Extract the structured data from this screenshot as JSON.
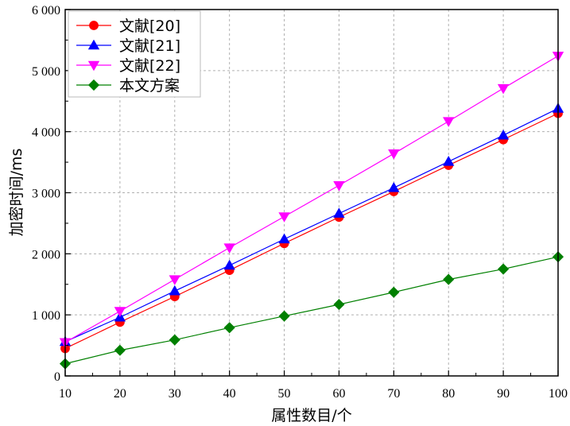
{
  "chart_data": {
    "type": "line",
    "xlabel": "属性数目/个",
    "ylabel": "加密时间/ms",
    "x": [
      10,
      20,
      30,
      40,
      50,
      60,
      70,
      80,
      90,
      100
    ],
    "xlim": [
      10,
      100
    ],
    "ylim": [
      0,
      6000
    ],
    "x_ticks": [
      "10",
      "20",
      "30",
      "40",
      "50",
      "60",
      "70",
      "80",
      "90",
      "100"
    ],
    "y_ticks": [
      "0",
      "1 000",
      "2 000",
      "3 000",
      "4 000",
      "5 000",
      "6 000"
    ],
    "grid": true,
    "legend_position": "top-left",
    "series": [
      {
        "name": "文献[20]",
        "color": "#ff0000",
        "marker": "circle",
        "values": [
          450,
          880,
          1300,
          1730,
          2170,
          2600,
          3020,
          3450,
          3870,
          4300
        ]
      },
      {
        "name": "文献[21]",
        "color": "#0000ff",
        "marker": "triangle-up",
        "values": [
          560,
          960,
          1390,
          1810,
          2240,
          2660,
          3080,
          3510,
          3940,
          4380
        ]
      },
      {
        "name": "文献[22]",
        "color": "#ff00ff",
        "marker": "triangle-down",
        "values": [
          550,
          1060,
          1580,
          2100,
          2610,
          3120,
          3640,
          4170,
          4710,
          5240
        ]
      },
      {
        "name": "本文方案",
        "color": "#008000",
        "marker": "diamond",
        "values": [
          200,
          420,
          590,
          790,
          980,
          1170,
          1370,
          1580,
          1750,
          1950
        ]
      }
    ]
  }
}
